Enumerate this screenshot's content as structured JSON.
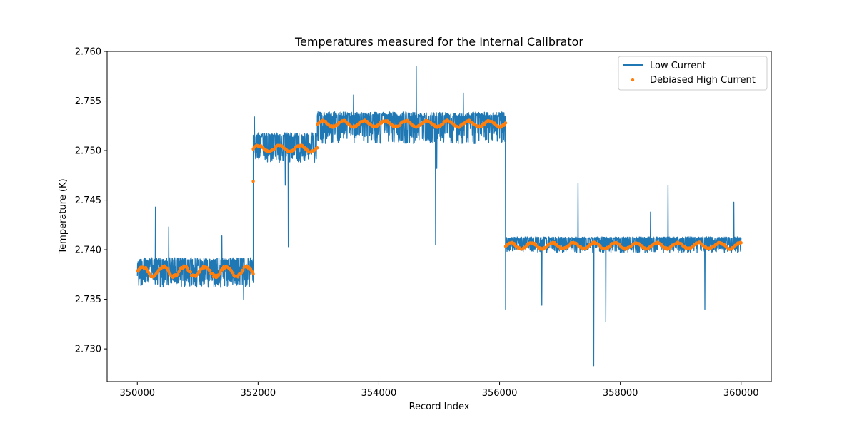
{
  "chart_data": {
    "type": "line",
    "title": "Temperatures measured for the Internal Calibrator",
    "xlabel": "Record Index",
    "ylabel": "Temperature (K)",
    "xlim": [
      349500,
      360500
    ],
    "ylim": [
      2.7267,
      2.76
    ],
    "xticks": [
      350000,
      352000,
      354000,
      356000,
      358000,
      360000
    ],
    "xtick_labels": [
      "350000",
      "352000",
      "354000",
      "356000",
      "358000",
      "360000"
    ],
    "yticks": [
      2.73,
      2.735,
      2.74,
      2.745,
      2.75,
      2.755,
      2.76
    ],
    "ytick_labels": [
      "2.730",
      "2.735",
      "2.740",
      "2.745",
      "2.750",
      "2.755",
      "2.760"
    ],
    "legend_position": "top-right",
    "series": [
      {
        "name": "Low Current",
        "style": "line",
        "color": "#1f77b4",
        "segments": [
          {
            "x_start": 350000,
            "x_end": 351920,
            "low": 2.7362,
            "high": 2.7392,
            "mean": 2.7377
          },
          {
            "x_start": 351920,
            "x_end": 352980,
            "low": 2.7488,
            "high": 2.7518,
            "mean": 2.7503
          },
          {
            "x_start": 352980,
            "x_end": 356100,
            "low": 2.7507,
            "high": 2.7539,
            "mean": 2.7527
          },
          {
            "x_start": 356100,
            "x_end": 360000,
            "low": 2.7397,
            "high": 2.7413,
            "mean": 2.7405
          }
        ],
        "spikes": [
          {
            "x": 350300,
            "y": 2.7443
          },
          {
            "x": 350520,
            "y": 2.7423
          },
          {
            "x": 351400,
            "y": 2.7414
          },
          {
            "x": 351760,
            "y": 2.735
          },
          {
            "x": 351940,
            "y": 2.7534
          },
          {
            "x": 352340,
            "y": 2.7515
          },
          {
            "x": 352450,
            "y": 2.7465
          },
          {
            "x": 352500,
            "y": 2.7403
          },
          {
            "x": 353580,
            "y": 2.7556
          },
          {
            "x": 354620,
            "y": 2.7585
          },
          {
            "x": 354940,
            "y": 2.7405
          },
          {
            "x": 354960,
            "y": 2.7482
          },
          {
            "x": 355400,
            "y": 2.7558
          },
          {
            "x": 356100,
            "y": 2.734
          },
          {
            "x": 356700,
            "y": 2.7344
          },
          {
            "x": 357300,
            "y": 2.7467
          },
          {
            "x": 357560,
            "y": 2.7283
          },
          {
            "x": 357760,
            "y": 2.7327
          },
          {
            "x": 358500,
            "y": 2.7438
          },
          {
            "x": 358790,
            "y": 2.7465
          },
          {
            "x": 359400,
            "y": 2.734
          },
          {
            "x": 359880,
            "y": 2.7448
          }
        ]
      },
      {
        "name": "Debiased High Current",
        "style": "scatter",
        "color": "#ff7f0e",
        "segments": [
          {
            "x_start": 350000,
            "x_end": 351920,
            "mean": 2.7378,
            "amplitude": 0.0005
          },
          {
            "x_start": 351920,
            "x_end": 352980,
            "mean": 2.7502,
            "amplitude": 0.0003
          },
          {
            "x_start": 352980,
            "x_end": 356100,
            "mean": 2.7527,
            "amplitude": 0.0003
          },
          {
            "x_start": 356100,
            "x_end": 360000,
            "mean": 2.7404,
            "amplitude": 0.0003
          }
        ],
        "outliers": [
          {
            "x": 351920,
            "y": 2.7469
          }
        ]
      }
    ]
  }
}
